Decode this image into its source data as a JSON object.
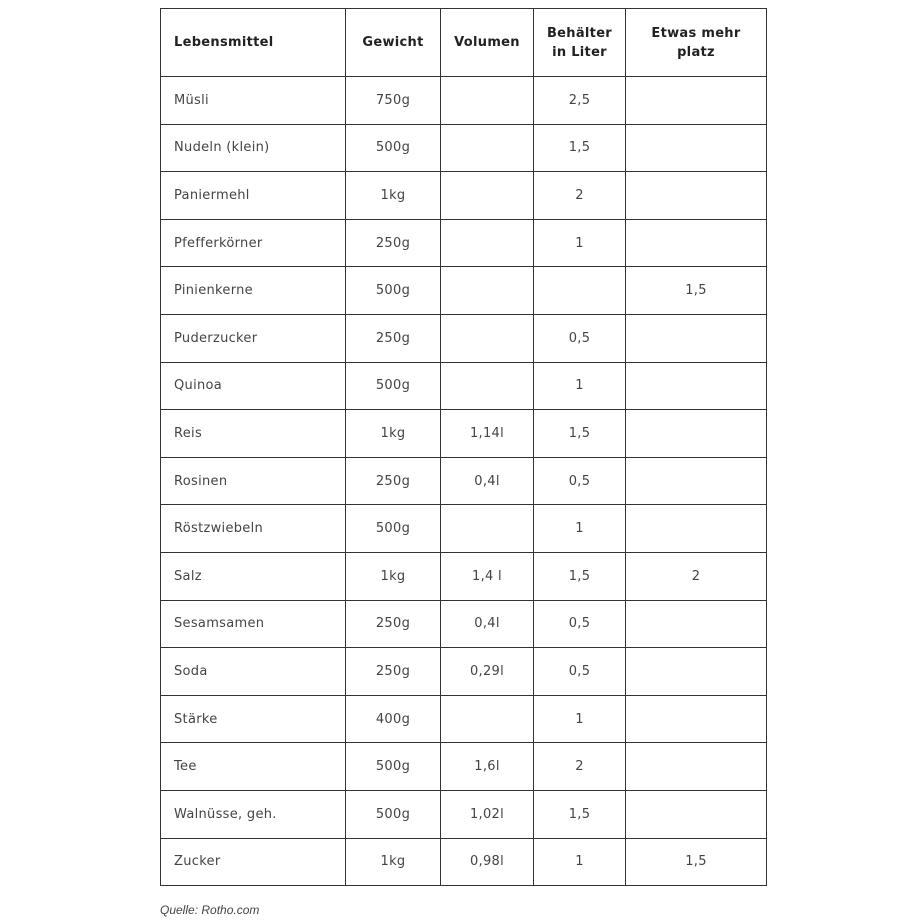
{
  "table": {
    "headers": [
      "Lebensmittel",
      "Gewicht",
      "Volumen",
      "Behälter in Liter",
      "Etwas mehr platz"
    ],
    "rows": [
      [
        "Müsli",
        "750g",
        "",
        "2,5",
        ""
      ],
      [
        "Nudeln (klein)",
        "500g",
        "",
        "1,5",
        ""
      ],
      [
        "Paniermehl",
        "1kg",
        "",
        "2",
        ""
      ],
      [
        "Pfefferkörner",
        "250g",
        "",
        "1",
        ""
      ],
      [
        "Pinienkerne",
        "500g",
        "",
        "",
        "1,5"
      ],
      [
        "Puderzucker",
        "250g",
        "",
        "0,5",
        ""
      ],
      [
        "Quinoa",
        "500g",
        "",
        "1",
        ""
      ],
      [
        "Reis",
        "1kg",
        "1,14l",
        "1,5",
        ""
      ],
      [
        "Rosinen",
        "250g",
        "0,4l",
        "0,5",
        ""
      ],
      [
        "Röstzwiebeln",
        "500g",
        "",
        "1",
        ""
      ],
      [
        "Salz",
        "1kg",
        "1,4 l",
        "1,5",
        "2"
      ],
      [
        "Sesamsamen",
        "250g",
        "0,4l",
        "0,5",
        ""
      ],
      [
        "Soda",
        "250g",
        "0,29l",
        "0,5",
        ""
      ],
      [
        "Stärke",
        "400g",
        "",
        "1",
        ""
      ],
      [
        "Tee",
        "500g",
        "1,6l",
        "2",
        ""
      ],
      [
        "Walnüsse, geh.",
        "500g",
        "1,02l",
        "1,5",
        ""
      ],
      [
        "Zucker",
        "1kg",
        "0,98l",
        "1",
        "1,5"
      ]
    ]
  },
  "source": "Quelle: Rotho.com"
}
